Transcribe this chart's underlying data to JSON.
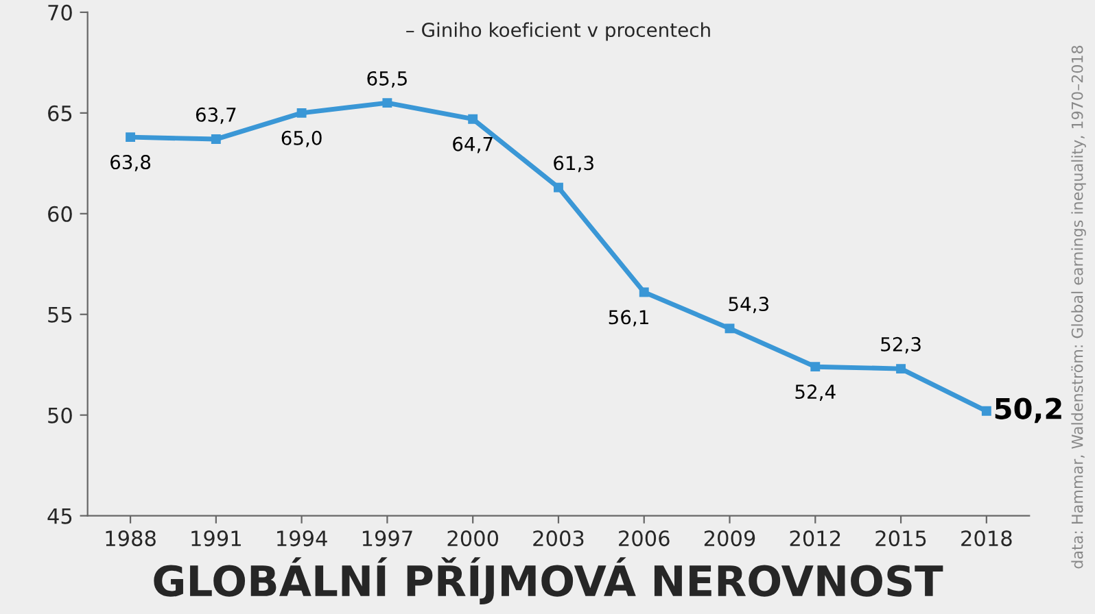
{
  "chart_data": {
    "type": "line",
    "title": "GLOBÁLNÍ PŘÍJMOVÁ NEROVNOST",
    "subtitle": "– Giniho koeficient v procentech",
    "categories": [
      "1988",
      "1991",
      "1994",
      "1997",
      "2000",
      "2003",
      "2006",
      "2009",
      "2012",
      "2015",
      "2018"
    ],
    "series": [
      {
        "color": "#3a97d6",
        "values": [
          63.8,
          63.7,
          65.0,
          65.5,
          64.7,
          61.3,
          56.1,
          54.3,
          52.4,
          52.3,
          50.2
        ],
        "value_labels": [
          "63,8",
          "63,7",
          "65,0",
          "65,5",
          "64,7",
          "61,3",
          "56,1",
          "54,3",
          "52,4",
          "52,3",
          "50,2"
        ]
      }
    ],
    "ylim": [
      45,
      70
    ],
    "yticks": [
      45,
      50,
      55,
      60,
      65,
      70
    ],
    "marker": "square",
    "line_style": "solid",
    "grid": false,
    "legend": false,
    "annotations": [
      "data: Hammar, Waldenström: Global earnings inequality, 1970–2018"
    ]
  }
}
